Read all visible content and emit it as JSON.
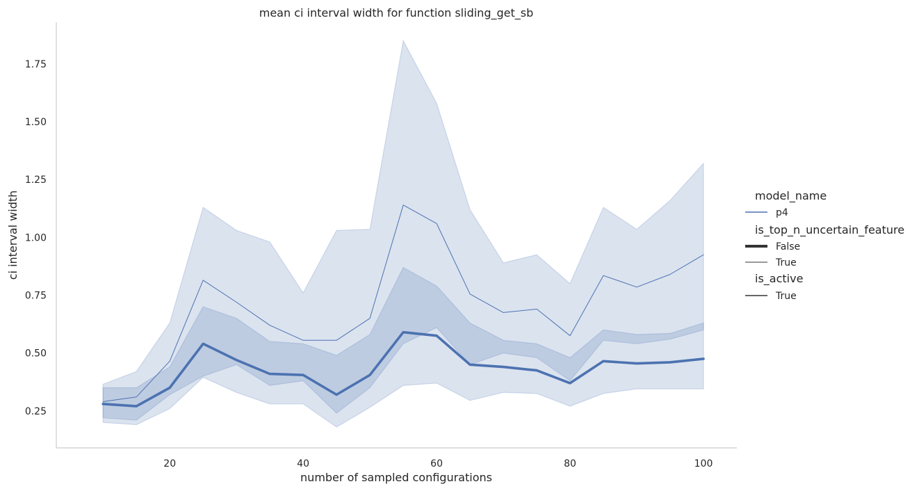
{
  "chart_data": {
    "type": "line",
    "title": "mean ci interval width for function sliding_get_sb",
    "xlabel": "number of sampled configurations",
    "ylabel": "ci interval width",
    "xlim": [
      3,
      105
    ],
    "ylim": [
      0.09,
      1.93
    ],
    "xticks": [
      20,
      40,
      60,
      80,
      100
    ],
    "yticks": [
      0.25,
      0.5,
      0.75,
      1.0,
      1.25,
      1.5,
      1.75
    ],
    "ytick_labels": [
      "0.25",
      "0.50",
      "0.75",
      "1.00",
      "1.25",
      "1.50",
      "1.75"
    ],
    "grid": false,
    "color": "#4c72b0",
    "x": [
      10,
      15,
      20,
      25,
      30,
      35,
      40,
      45,
      50,
      55,
      60,
      65,
      70,
      75,
      80,
      85,
      90,
      95,
      100
    ],
    "series": [
      {
        "name": "False",
        "linewidth": "thick",
        "values": [
          0.28,
          0.27,
          0.35,
          0.54,
          0.47,
          0.41,
          0.405,
          0.32,
          0.405,
          0.59,
          0.575,
          0.45,
          0.44,
          0.425,
          0.37,
          0.465,
          0.455,
          0.46,
          0.475
        ],
        "ci_low": [
          0.22,
          0.21,
          0.32,
          0.4,
          0.45,
          0.36,
          0.38,
          0.24,
          0.35,
          0.54,
          0.61,
          0.45,
          0.5,
          0.48,
          0.38,
          0.555,
          0.54,
          0.56,
          0.6
        ],
        "ci_high": [
          0.35,
          0.35,
          0.44,
          0.7,
          0.65,
          0.55,
          0.54,
          0.49,
          0.58,
          0.87,
          0.79,
          0.63,
          0.555,
          0.54,
          0.48,
          0.6,
          0.58,
          0.585,
          0.63
        ]
      },
      {
        "name": "True",
        "linewidth": "thin",
        "values": [
          0.29,
          0.31,
          0.465,
          0.815,
          0.72,
          0.62,
          0.555,
          0.555,
          0.65,
          1.14,
          1.06,
          0.755,
          0.675,
          0.69,
          0.575,
          0.835,
          0.785,
          0.84,
          0.925
        ],
        "ci_low": [
          0.2,
          0.19,
          0.26,
          0.395,
          0.33,
          0.28,
          0.28,
          0.18,
          0.265,
          0.36,
          0.37,
          0.295,
          0.33,
          0.325,
          0.27,
          0.325,
          0.345,
          0.345,
          0.345
        ],
        "ci_high": [
          0.365,
          0.42,
          0.63,
          1.13,
          1.03,
          0.98,
          0.76,
          1.03,
          1.035,
          1.85,
          1.58,
          1.12,
          0.89,
          0.925,
          0.8,
          1.13,
          1.035,
          1.16,
          1.32
        ]
      }
    ],
    "legend": {
      "placement": "right",
      "sections": [
        {
          "title": "model_name",
          "entries": [
            {
              "label": "p4",
              "style": "color"
            }
          ]
        },
        {
          "title": "is_top_n_uncertain_feature",
          "entries": [
            {
              "label": "False",
              "style": "thick"
            },
            {
              "label": "True",
              "style": "thin"
            }
          ]
        },
        {
          "title": "is_active",
          "entries": [
            {
              "label": "True",
              "style": "solid"
            }
          ]
        }
      ]
    }
  }
}
